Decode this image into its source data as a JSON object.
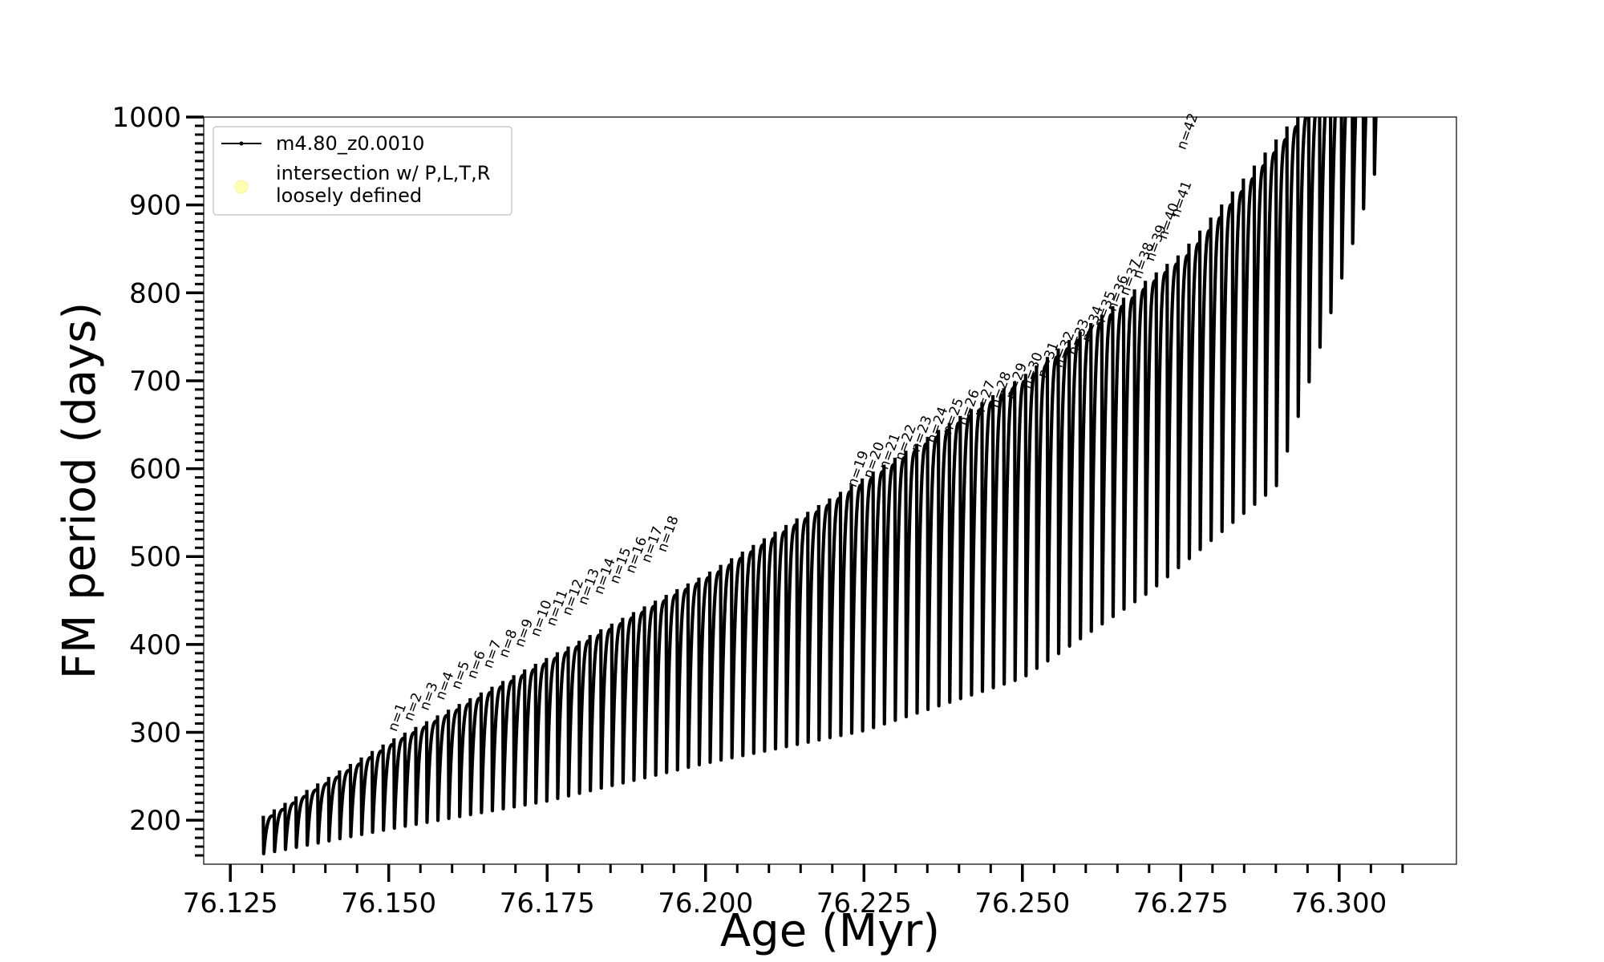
{
  "chart_data": {
    "type": "line",
    "title": "",
    "xlabel": "Age (Myr)",
    "ylabel": "FM period (days)",
    "xlim": [
      76.1208,
      76.3185
    ],
    "ylim": [
      150,
      1000
    ],
    "xticks": [
      "76.125",
      "76.150",
      "76.175",
      "76.200",
      "76.225",
      "76.250",
      "76.275",
      "76.300"
    ],
    "xtick_values": [
      76.125,
      76.15,
      76.175,
      76.2,
      76.225,
      76.25,
      76.275,
      76.3
    ],
    "yticks": [
      "200",
      "300",
      "400",
      "500",
      "600",
      "700",
      "800",
      "900",
      "1000"
    ],
    "ytick_values": [
      200,
      300,
      400,
      500,
      600,
      700,
      800,
      900,
      1000
    ],
    "grid": false,
    "legend": {
      "placement": "top-left",
      "entries": [
        {
          "label": "m4.80_z0.0010",
          "marker": "line-with-dots",
          "color": "#000000"
        },
        {
          "label": "intersection w/ P,L,T,R\nloosely defined",
          "marker": "circle",
          "color": "#ffffb3"
        }
      ]
    },
    "series": [
      {
        "name": "m4.80_z0.0010",
        "color": "#000000",
        "pulse_cycles": {
          "start_age": 76.1302,
          "end_age": 76.3055,
          "count": 103,
          "max_period_first": 205,
          "min_period_first": 162,
          "envelope_top": [
            [
              76.1302,
              205
            ],
            [
              76.15,
              290
            ],
            [
              76.175,
              385
            ],
            [
              76.2,
              480
            ],
            [
              76.225,
              590
            ],
            [
              76.25,
              705
            ],
            [
              76.275,
              845
            ],
            [
              76.293,
              1000
            ]
          ],
          "envelope_bottom": [
            [
              76.1302,
              162
            ],
            [
              76.15,
              190
            ],
            [
              76.175,
              222
            ],
            [
              76.2,
              265
            ],
            [
              76.225,
              302
            ],
            [
              76.25,
              362
            ],
            [
              76.27,
              460
            ],
            [
              76.29,
              580
            ],
            [
              76.3055,
              935
            ]
          ]
        }
      }
    ],
    "annotations": [
      {
        "text": "n=1",
        "x": 76.1512,
        "y": 300
      },
      {
        "text": "n=2",
        "x": 76.1537,
        "y": 312
      },
      {
        "text": "n=3",
        "x": 76.1562,
        "y": 324
      },
      {
        "text": "n=4",
        "x": 76.1587,
        "y": 336
      },
      {
        "text": "n=5",
        "x": 76.1612,
        "y": 348
      },
      {
        "text": "n=6",
        "x": 76.1637,
        "y": 360
      },
      {
        "text": "n=7",
        "x": 76.1662,
        "y": 372
      },
      {
        "text": "n=8",
        "x": 76.1687,
        "y": 384
      },
      {
        "text": "n=9",
        "x": 76.1712,
        "y": 396
      },
      {
        "text": "n=10",
        "x": 76.1737,
        "y": 408
      },
      {
        "text": "n=11",
        "x": 76.1762,
        "y": 420
      },
      {
        "text": "n=12",
        "x": 76.1787,
        "y": 432
      },
      {
        "text": "n=13",
        "x": 76.1812,
        "y": 444
      },
      {
        "text": "n=14",
        "x": 76.1837,
        "y": 456
      },
      {
        "text": "n=15",
        "x": 76.1862,
        "y": 468
      },
      {
        "text": "n=16",
        "x": 76.1887,
        "y": 480
      },
      {
        "text": "n=17",
        "x": 76.1912,
        "y": 492
      },
      {
        "text": "n=18",
        "x": 76.1937,
        "y": 504
      },
      {
        "text": "n=19",
        "x": 76.2237,
        "y": 578
      },
      {
        "text": "n=20",
        "x": 76.2262,
        "y": 588
      },
      {
        "text": "n=21",
        "x": 76.2287,
        "y": 598
      },
      {
        "text": "n=22",
        "x": 76.2312,
        "y": 608
      },
      {
        "text": "n=23",
        "x": 76.2337,
        "y": 618
      },
      {
        "text": "n=24",
        "x": 76.2362,
        "y": 628
      },
      {
        "text": "n=25",
        "x": 76.2387,
        "y": 638
      },
      {
        "text": "n=26",
        "x": 76.2412,
        "y": 648
      },
      {
        "text": "n=27",
        "x": 76.2437,
        "y": 658
      },
      {
        "text": "n=28",
        "x": 76.2462,
        "y": 668
      },
      {
        "text": "n=29",
        "x": 76.2487,
        "y": 678
      },
      {
        "text": "n=30",
        "x": 76.2512,
        "y": 690
      },
      {
        "text": "n=31",
        "x": 76.2537,
        "y": 702
      },
      {
        "text": "n=32",
        "x": 76.2562,
        "y": 714
      },
      {
        "text": "n=33",
        "x": 76.2585,
        "y": 728
      },
      {
        "text": "n=34",
        "x": 76.2607,
        "y": 743
      },
      {
        "text": "n=35",
        "x": 76.2627,
        "y": 760
      },
      {
        "text": "n=36",
        "x": 76.2647,
        "y": 778
      },
      {
        "text": "n=37",
        "x": 76.2667,
        "y": 796
      },
      {
        "text": "n=38",
        "x": 76.2687,
        "y": 815
      },
      {
        "text": "n=39",
        "x": 76.2707,
        "y": 835
      },
      {
        "text": "n=40",
        "x": 76.2727,
        "y": 860
      },
      {
        "text": "n=41",
        "x": 76.2747,
        "y": 885
      },
      {
        "text": "n=42",
        "x": 76.2757,
        "y": 962
      }
    ]
  }
}
